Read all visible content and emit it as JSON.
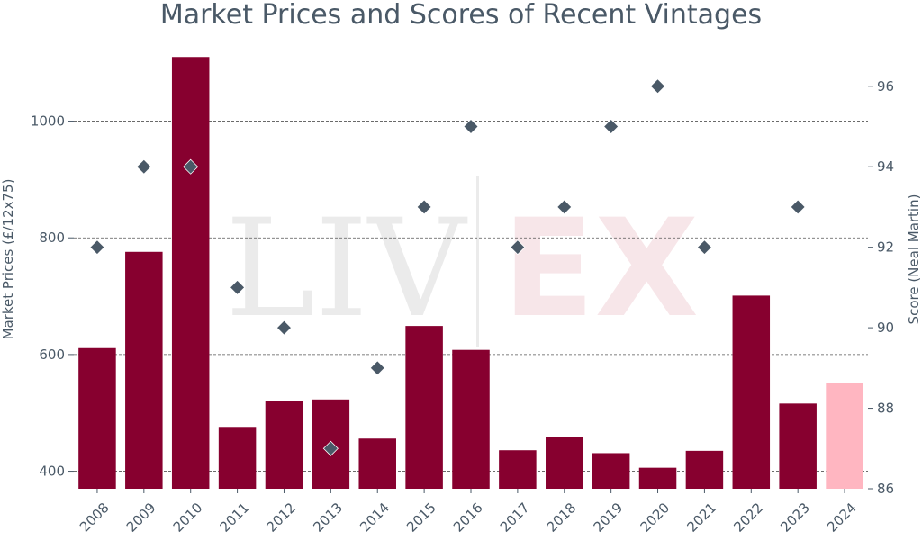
{
  "chart_data": {
    "type": "bar",
    "title": "Market Prices and Scores of Recent Vintages",
    "xlabel": "",
    "ylabel": "Market Prices (£/12x75)",
    "y2label": "Score (Neal Martin)",
    "categories": [
      "2008",
      "2009",
      "2010",
      "2011",
      "2012",
      "2013",
      "2014",
      "2015",
      "2016",
      "2017",
      "2018",
      "2019",
      "2020",
      "2021",
      "2022",
      "2023",
      "2024"
    ],
    "series": [
      {
        "type": "bar",
        "axis": "left",
        "values": [
          611,
          776,
          1110,
          476,
          520,
          523,
          456,
          649,
          608,
          436,
          458,
          431,
          406,
          435,
          701,
          516,
          551
        ],
        "colors": [
          "#87002f",
          "#87002f",
          "#87002f",
          "#87002f",
          "#87002f",
          "#87002f",
          "#87002f",
          "#87002f",
          "#87002f",
          "#87002f",
          "#87002f",
          "#87002f",
          "#87002f",
          "#87002f",
          "#87002f",
          "#87002f",
          "#ffb6c1"
        ]
      },
      {
        "type": "scatter",
        "axis": "right",
        "marker": "diamond",
        "color": "#4a5967",
        "values": [
          92,
          94,
          94,
          91,
          90,
          87,
          89,
          93,
          95,
          92,
          93,
          95,
          96,
          92,
          null,
          93,
          null
        ]
      }
    ],
    "ylim": [
      370,
      1115
    ],
    "y2lim": [
      86,
      96.8
    ],
    "yticks": [
      400,
      600,
      800,
      1000
    ],
    "y2ticks": [
      86,
      88,
      90,
      92,
      94,
      96
    ],
    "grid": "horizontal dashed",
    "watermark": {
      "left": "LIV",
      "right": "EX"
    }
  }
}
